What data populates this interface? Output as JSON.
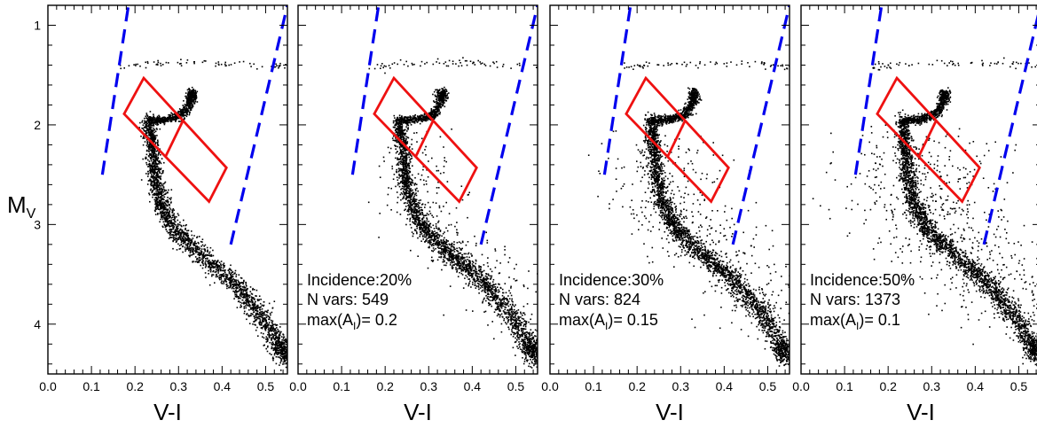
{
  "figure": {
    "ylabel": "M",
    "ylabel_sub": "V"
  },
  "chart_data": [
    {
      "type": "scatter",
      "xlabel": "V-I",
      "ylabel": "MV",
      "xlim": [
        0.0,
        0.55
      ],
      "ylim": [
        4.5,
        0.8
      ],
      "y_inverted": true,
      "xticks": [
        "0.0",
        "0.1",
        "0.2",
        "0.3",
        "0.4",
        "0.5"
      ],
      "yticks": [
        "1",
        "2",
        "3",
        "4"
      ],
      "boundary_color": "#0000ee",
      "box_color": "#ee1111",
      "point_color": "#000000",
      "annotation": null
    },
    {
      "type": "scatter",
      "xlabel": "V-I",
      "xlim": [
        0.0,
        0.55
      ],
      "ylim": [
        4.5,
        0.8
      ],
      "y_inverted": true,
      "xticks": [
        "0.0",
        "0.1",
        "0.2",
        "0.3",
        "0.4",
        "0.5"
      ],
      "scatter_level": 1,
      "boundary_color": "#0000ee",
      "box_color": "#ee1111",
      "point_color": "#000000",
      "annotation": {
        "incidence_label": "Incidence:",
        "incidence_value": "20%",
        "nvars_label": "N vars:",
        "nvars_value": "549",
        "max_label": "max(A",
        "max_sub": "I",
        "max_close": ")=",
        "max_value": "0.2"
      }
    },
    {
      "type": "scatter",
      "xlabel": "V-I",
      "xlim": [
        0.0,
        0.55
      ],
      "ylim": [
        4.5,
        0.8
      ],
      "y_inverted": true,
      "xticks": [
        "0.0",
        "0.1",
        "0.2",
        "0.3",
        "0.4",
        "0.5"
      ],
      "scatter_level": 2,
      "boundary_color": "#0000ee",
      "box_color": "#ee1111",
      "point_color": "#000000",
      "annotation": {
        "incidence_label": "Incidence:",
        "incidence_value": "30%",
        "nvars_label": "N vars:",
        "nvars_value": "824",
        "max_label": "max(A",
        "max_sub": "I",
        "max_close": ")=",
        "max_value": "0.15"
      }
    },
    {
      "type": "scatter",
      "xlabel": "V-I",
      "xlim": [
        0.0,
        0.55
      ],
      "ylim": [
        4.5,
        0.8
      ],
      "y_inverted": true,
      "xticks": [
        "0.0",
        "0.1",
        "0.2",
        "0.3",
        "0.4",
        "0.5"
      ],
      "scatter_level": 3,
      "boundary_color": "#0000ee",
      "box_color": "#ee1111",
      "point_color": "#000000",
      "annotation": {
        "incidence_label": "Incidence:",
        "incidence_value": "50%",
        "nvars_label": "N vars:",
        "nvars_value": "1373",
        "max_label": "max(A",
        "max_sub": "I",
        "max_close": ")=",
        "max_value": "0.1"
      }
    }
  ],
  "shared_overlays": {
    "blue_boundary_left": [
      [
        0.125,
        2.5
      ],
      [
        0.185,
        0.8
      ]
    ],
    "blue_boundary_right": [
      [
        0.42,
        3.2
      ],
      [
        0.55,
        0.8
      ]
    ],
    "red_box": [
      [
        0.22,
        1.53
      ],
      [
        0.41,
        2.43
      ],
      [
        0.37,
        2.77
      ],
      [
        0.175,
        1.89
      ],
      [
        0.22,
        1.53
      ]
    ],
    "red_divider": [
      [
        0.31,
        1.96
      ],
      [
        0.27,
        2.32
      ]
    ],
    "main_sequence_ridge": [
      [
        0.23,
        1.96
      ],
      [
        0.24,
        2.2
      ],
      [
        0.245,
        2.5
      ],
      [
        0.26,
        2.8
      ],
      [
        0.29,
        3.05
      ],
      [
        0.35,
        3.3
      ],
      [
        0.42,
        3.55
      ],
      [
        0.48,
        3.85
      ],
      [
        0.53,
        4.2
      ],
      [
        0.55,
        4.35
      ]
    ],
    "subgiant_branch": [
      [
        0.23,
        1.96
      ],
      [
        0.27,
        1.95
      ],
      [
        0.31,
        1.9
      ],
      [
        0.33,
        1.75
      ],
      [
        0.33,
        1.66
      ]
    ],
    "horizontal_branch_row": [
      [
        0.16,
        1.42
      ],
      [
        0.55,
        1.42
      ]
    ]
  }
}
